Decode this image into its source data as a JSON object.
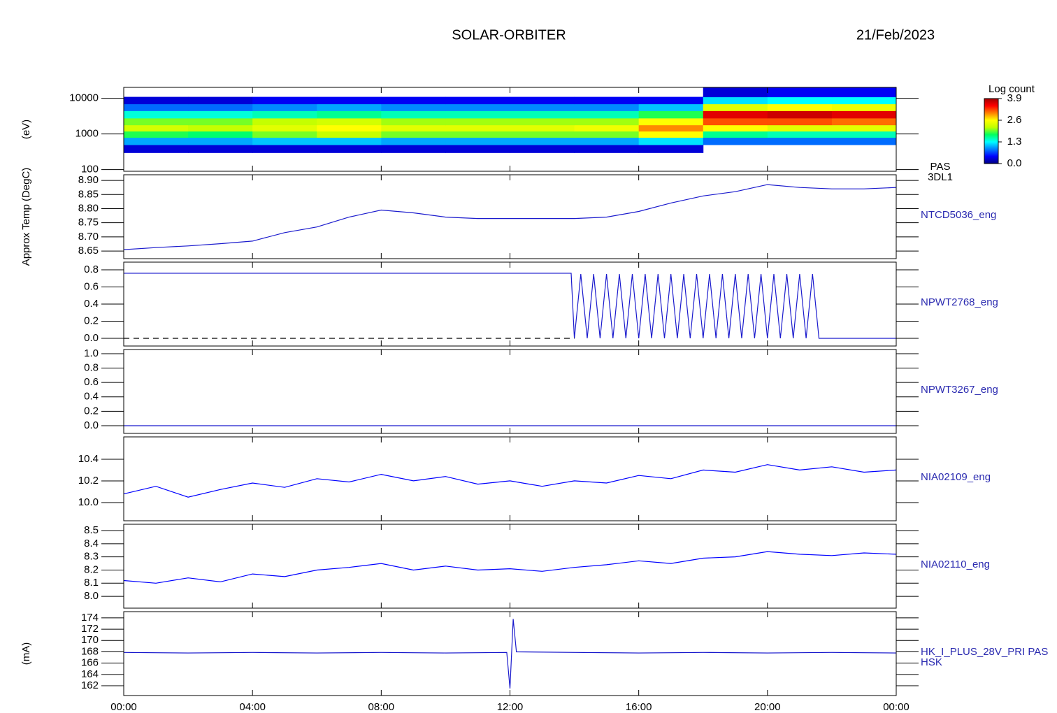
{
  "chart_data": [
    {
      "type": "heatmap",
      "title": "SOLAR-ORBITER",
      "subtitle": "21/Feb/2023",
      "ylabel": "(eV)",
      "label": "PAS",
      "label2": "3DL1",
      "log": true,
      "xlim": [
        0,
        24
      ],
      "ylim": [
        90,
        20300
      ],
      "yticks": [
        100,
        1000,
        10000
      ],
      "xbins": [
        0,
        2,
        4,
        6,
        8,
        10,
        12,
        14,
        16,
        18,
        20,
        22,
        24
      ],
      "ybins": [
        300,
        500,
        800,
        1200,
        1800,
        2800,
        4500,
        7000,
        11000,
        20000
      ],
      "z": [
        [
          0.3,
          0.3,
          0.3,
          0.3,
          0.3,
          0.3,
          0.3,
          0.3,
          0.3,
          null,
          null,
          null
        ],
        [
          1.0,
          1.0,
          1.1,
          1.1,
          1.0,
          1.0,
          1.0,
          1.0,
          1.2,
          0.8,
          0.8,
          0.8
        ],
        [
          1.8,
          1.7,
          2.0,
          2.2,
          2.0,
          2.0,
          2.0,
          2.0,
          2.6,
          1.6,
          1.5,
          1.5
        ],
        [
          2.3,
          2.2,
          2.4,
          2.6,
          2.4,
          2.4,
          2.4,
          2.5,
          3.0,
          2.6,
          2.4,
          2.4
        ],
        [
          2.0,
          2.0,
          2.2,
          2.3,
          2.1,
          2.1,
          2.1,
          2.1,
          2.6,
          3.2,
          3.2,
          3.1
        ],
        [
          1.4,
          1.4,
          1.5,
          1.6,
          1.5,
          1.5,
          1.5,
          1.5,
          1.8,
          3.6,
          3.7,
          3.6
        ],
        [
          0.8,
          0.8,
          0.9,
          1.0,
          0.9,
          0.9,
          0.9,
          0.9,
          1.1,
          2.4,
          2.6,
          2.5
        ],
        [
          0.3,
          0.3,
          0.4,
          0.4,
          0.4,
          0.4,
          0.4,
          0.4,
          0.4,
          1.2,
          1.3,
          1.3
        ],
        [
          null,
          null,
          null,
          null,
          null,
          null,
          null,
          null,
          null,
          0.3,
          0.4,
          0.4
        ]
      ],
      "clabel": "Log count",
      "clim": [
        0,
        3.9
      ],
      "cticks": [
        {
          "value": 0,
          "label": "0.0"
        },
        1.3,
        2.6,
        3.9
      ],
      "colors": [
        "#000080",
        "#0000ff",
        "#0080ff",
        "#00ffff",
        "#00ff60",
        "#c0ff00",
        "#ffff00",
        "#ff8000",
        "#ff0000",
        "#a00000"
      ]
    },
    {
      "type": "line",
      "ylabel": "Approx Temp (DegC)",
      "label": "NTCD5036_eng",
      "xlim": [
        0,
        24
      ],
      "ylim": [
        8.623,
        8.92
      ],
      "yticks": [
        8.65,
        {
          "value": 8.7,
          "label": "8.70"
        },
        8.75,
        {
          "value": 8.8,
          "label": "8.80"
        },
        8.85,
        {
          "value": 8.9,
          "label": "8.90"
        }
      ],
      "x": [
        0,
        1,
        2,
        3,
        4,
        5,
        6,
        7,
        8,
        9,
        10,
        11,
        12,
        13,
        14,
        15,
        16,
        17,
        18,
        19,
        20,
        21,
        22,
        23,
        24
      ],
      "series": [
        {
          "color": "#1a1acd",
          "values": [
            8.655,
            8.662,
            8.668,
            8.676,
            8.685,
            8.715,
            8.735,
            8.77,
            8.795,
            8.785,
            8.77,
            8.765,
            8.765,
            8.765,
            8.765,
            8.77,
            8.79,
            8.82,
            8.845,
            8.86,
            8.885,
            8.875,
            8.87,
            8.87,
            8.875
          ]
        }
      ]
    },
    {
      "type": "line",
      "label": "NPWT2768_eng",
      "xlim": [
        0,
        24
      ],
      "ylim": [
        -0.09,
        0.89
      ],
      "yticks": [
        {
          "value": 0,
          "label": "0.0"
        },
        0.2,
        0.4,
        0.6,
        0.8
      ],
      "x": [
        0,
        2,
        4,
        6,
        8,
        10,
        12,
        13.9,
        14,
        14.2,
        14.4,
        14.6,
        14.8,
        15,
        15.2,
        15.4,
        15.6,
        15.8,
        16,
        16.2,
        16.4,
        16.6,
        16.8,
        17,
        17.2,
        17.4,
        17.6,
        17.8,
        18,
        18.2,
        18.4,
        18.6,
        18.8,
        19,
        19.2,
        19.4,
        19.6,
        19.8,
        20,
        20.2,
        20.4,
        20.6,
        20.8,
        21,
        21.2,
        21.4,
        21.6,
        22,
        24
      ],
      "series": [
        {
          "color": "#1a1acd",
          "values": [
            0.76,
            0.76,
            0.76,
            0.76,
            0.76,
            0.76,
            0.76,
            0.76,
            0,
            0.75,
            0,
            0.75,
            0,
            0.75,
            0,
            0.75,
            0,
            0.75,
            0,
            0.75,
            0,
            0.75,
            0,
            0.75,
            0,
            0.75,
            0,
            0.75,
            0,
            0.75,
            0,
            0.75,
            0,
            0.75,
            0,
            0.75,
            0,
            0.75,
            0,
            0.75,
            0,
            0.75,
            0,
            0.75,
            0,
            0.75,
            0,
            0,
            0
          ]
        },
        {
          "color": "#000000",
          "dash": true,
          "values": [
            0,
            0,
            0,
            0,
            0,
            0,
            0,
            0,
            0,
            null,
            null,
            null,
            null,
            null,
            null,
            null,
            null,
            null,
            null,
            null,
            null,
            null,
            null,
            null,
            null,
            null,
            null,
            null,
            null,
            null,
            null,
            null,
            null,
            null,
            null,
            null,
            null,
            null,
            null,
            null,
            null,
            null,
            null,
            null,
            null,
            null,
            null,
            null,
            null
          ]
        }
      ]
    },
    {
      "type": "line",
      "label": "NPWT3267_eng",
      "xlim": [
        0,
        24
      ],
      "ylim": [
        -0.107,
        1.058
      ],
      "yticks": [
        {
          "value": 0,
          "label": "0.0"
        },
        0.2,
        0.4,
        0.6,
        0.8,
        {
          "value": 1,
          "label": "1.0"
        }
      ],
      "x": [
        0,
        24
      ],
      "series": [
        {
          "color": "#1a1acd",
          "values": [
            0,
            0
          ]
        }
      ]
    },
    {
      "type": "line",
      "label": "NIA02109_eng",
      "xlim": [
        0,
        24
      ],
      "ylim": [
        9.832,
        10.606
      ],
      "yticks": [
        {
          "value": 10,
          "label": "10.0"
        },
        10.2,
        10.4
      ],
      "x": [
        0,
        1,
        2,
        3,
        4,
        5,
        6,
        7,
        8,
        9,
        10,
        11,
        12,
        13,
        14,
        15,
        16,
        17,
        18,
        19,
        20,
        21,
        22,
        23,
        24
      ],
      "series": [
        {
          "color": "#0000ff",
          "values": [
            10.08,
            10.15,
            10.05,
            10.12,
            10.18,
            10.14,
            10.22,
            10.19,
            10.26,
            10.2,
            10.24,
            10.17,
            10.2,
            10.15,
            10.2,
            10.18,
            10.25,
            10.22,
            10.3,
            10.28,
            10.35,
            10.3,
            10.33,
            10.28,
            10.3
          ]
        }
      ]
    },
    {
      "type": "line",
      "label": "NIA02110_eng",
      "xlim": [
        0,
        24
      ],
      "ylim": [
        7.91,
        8.548
      ],
      "yticks": [
        {
          "value": 8,
          "label": "8.0"
        },
        8.1,
        8.2,
        8.3,
        8.4,
        8.5
      ],
      "x": [
        0,
        1,
        2,
        3,
        4,
        5,
        6,
        7,
        8,
        9,
        10,
        11,
        12,
        13,
        14,
        15,
        16,
        17,
        18,
        19,
        20,
        21,
        22,
        23,
        24
      ],
      "series": [
        {
          "color": "#0000ff",
          "values": [
            8.12,
            8.1,
            8.14,
            8.11,
            8.17,
            8.15,
            8.2,
            8.22,
            8.25,
            8.2,
            8.23,
            8.2,
            8.21,
            8.19,
            8.22,
            8.24,
            8.27,
            8.25,
            8.29,
            8.3,
            8.34,
            8.32,
            8.31,
            8.33,
            8.32
          ]
        }
      ]
    },
    {
      "type": "line",
      "ylabel": "(mA)",
      "label": "HK_I_PLUS_28V_PRI PAS",
      "label2": "HSK",
      "xlim": [
        0,
        24
      ],
      "ylim": [
        160.27,
        175.1
      ],
      "yticks": [
        162,
        164,
        166,
        168,
        170,
        172,
        174
      ],
      "xticks": [
        {
          "value": 0,
          "label": "00:00"
        },
        {
          "value": 4,
          "label": "04:00"
        },
        {
          "value": 8,
          "label": "08:00"
        },
        {
          "value": 12,
          "label": "12:00"
        },
        {
          "value": 16,
          "label": "16:00"
        },
        {
          "value": 20,
          "label": "20:00"
        },
        {
          "value": 24,
          "label": "00:00"
        }
      ],
      "x": [
        0,
        2,
        4,
        6,
        8,
        10,
        11.9,
        12.0,
        12.1,
        12.2,
        14,
        16,
        18,
        20,
        22,
        24
      ],
      "series": [
        {
          "color": "#1a1acd",
          "values": [
            167.9,
            167.8,
            167.9,
            167.8,
            167.9,
            167.8,
            167.9,
            161.5,
            173.8,
            168.0,
            167.9,
            167.8,
            167.9,
            167.8,
            167.9,
            167.8
          ]
        }
      ]
    }
  ]
}
